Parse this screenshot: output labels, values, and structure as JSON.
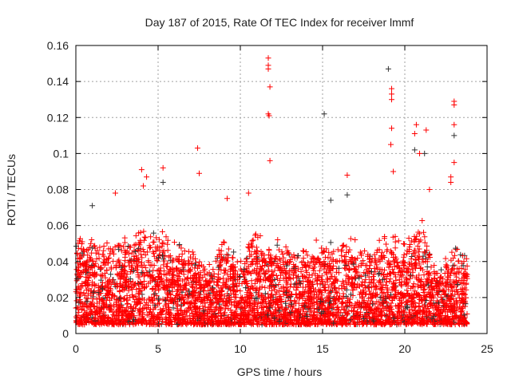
{
  "chart_data": {
    "type": "scatter",
    "title": "Day 187 of 2015, Rate Of TEC Index for receiver lmmf",
    "xlabel": "GPS time / hours",
    "ylabel": "ROTI / TECUs",
    "xlim": [
      0,
      25
    ],
    "ylim": [
      0,
      0.16
    ],
    "xticks": [
      0,
      5,
      10,
      15,
      20,
      25
    ],
    "xtick_labels": [
      "0",
      "5",
      "10",
      "15",
      "20",
      "25"
    ],
    "yticks": [
      0,
      0.02,
      0.04,
      0.06,
      0.08,
      0.1,
      0.12,
      0.14,
      0.16
    ],
    "ytick_labels": [
      "0",
      "0.02",
      "0.04",
      "0.06",
      "0.08",
      "0.1",
      "0.12",
      "0.14",
      "0.16"
    ],
    "grid": true,
    "marker": "+",
    "colors": {
      "primary": "#ff0000",
      "secondary": "#333333"
    },
    "data_extent_hours": [
      0,
      23.8
    ],
    "dense_band_floor": 0.005,
    "dense_band_upper_by_hour": [
      0.055,
      0.05,
      0.05,
      0.05,
      0.055,
      0.055,
      0.05,
      0.045,
      0.035,
      0.05,
      0.04,
      0.055,
      0.05,
      0.045,
      0.045,
      0.05,
      0.05,
      0.05,
      0.045,
      0.055,
      0.05,
      0.06,
      0.035,
      0.045,
      0.04
    ],
    "outliers_red": [
      [
        11.7,
        0.153
      ],
      [
        11.7,
        0.149
      ],
      [
        11.7,
        0.147
      ],
      [
        11.8,
        0.137
      ],
      [
        11.7,
        0.122
      ],
      [
        11.75,
        0.121
      ],
      [
        11.8,
        0.096
      ],
      [
        19.2,
        0.136
      ],
      [
        19.2,
        0.133
      ],
      [
        19.2,
        0.13
      ],
      [
        19.2,
        0.114
      ],
      [
        19.15,
        0.105
      ],
      [
        23,
        0.129
      ],
      [
        23,
        0.127
      ],
      [
        23,
        0.116
      ],
      [
        20.6,
        0.111
      ],
      [
        20.7,
        0.116
      ],
      [
        21.3,
        0.113
      ],
      [
        7.4,
        0.103
      ],
      [
        4,
        0.091
      ],
      [
        5.3,
        0.092
      ],
      [
        4.3,
        0.087
      ],
      [
        7.5,
        0.089
      ],
      [
        2.4,
        0.078
      ],
      [
        10.5,
        0.078
      ],
      [
        9.2,
        0.075
      ],
      [
        16.5,
        0.088
      ],
      [
        22.8,
        0.087
      ],
      [
        22.8,
        0.084
      ],
      [
        23,
        0.095
      ],
      [
        19.3,
        0.09
      ],
      [
        20.9,
        0.1
      ],
      [
        21.5,
        0.08
      ],
      [
        4.1,
        0.082
      ]
    ],
    "outliers_black": [
      [
        19,
        0.147
      ],
      [
        15.1,
        0.122
      ],
      [
        23,
        0.11
      ],
      [
        20.6,
        0.102
      ],
      [
        1,
        0.071
      ],
      [
        15.5,
        0.074
      ],
      [
        5.3,
        0.084
      ],
      [
        16.5,
        0.077
      ],
      [
        21.2,
        0.1
      ]
    ]
  }
}
